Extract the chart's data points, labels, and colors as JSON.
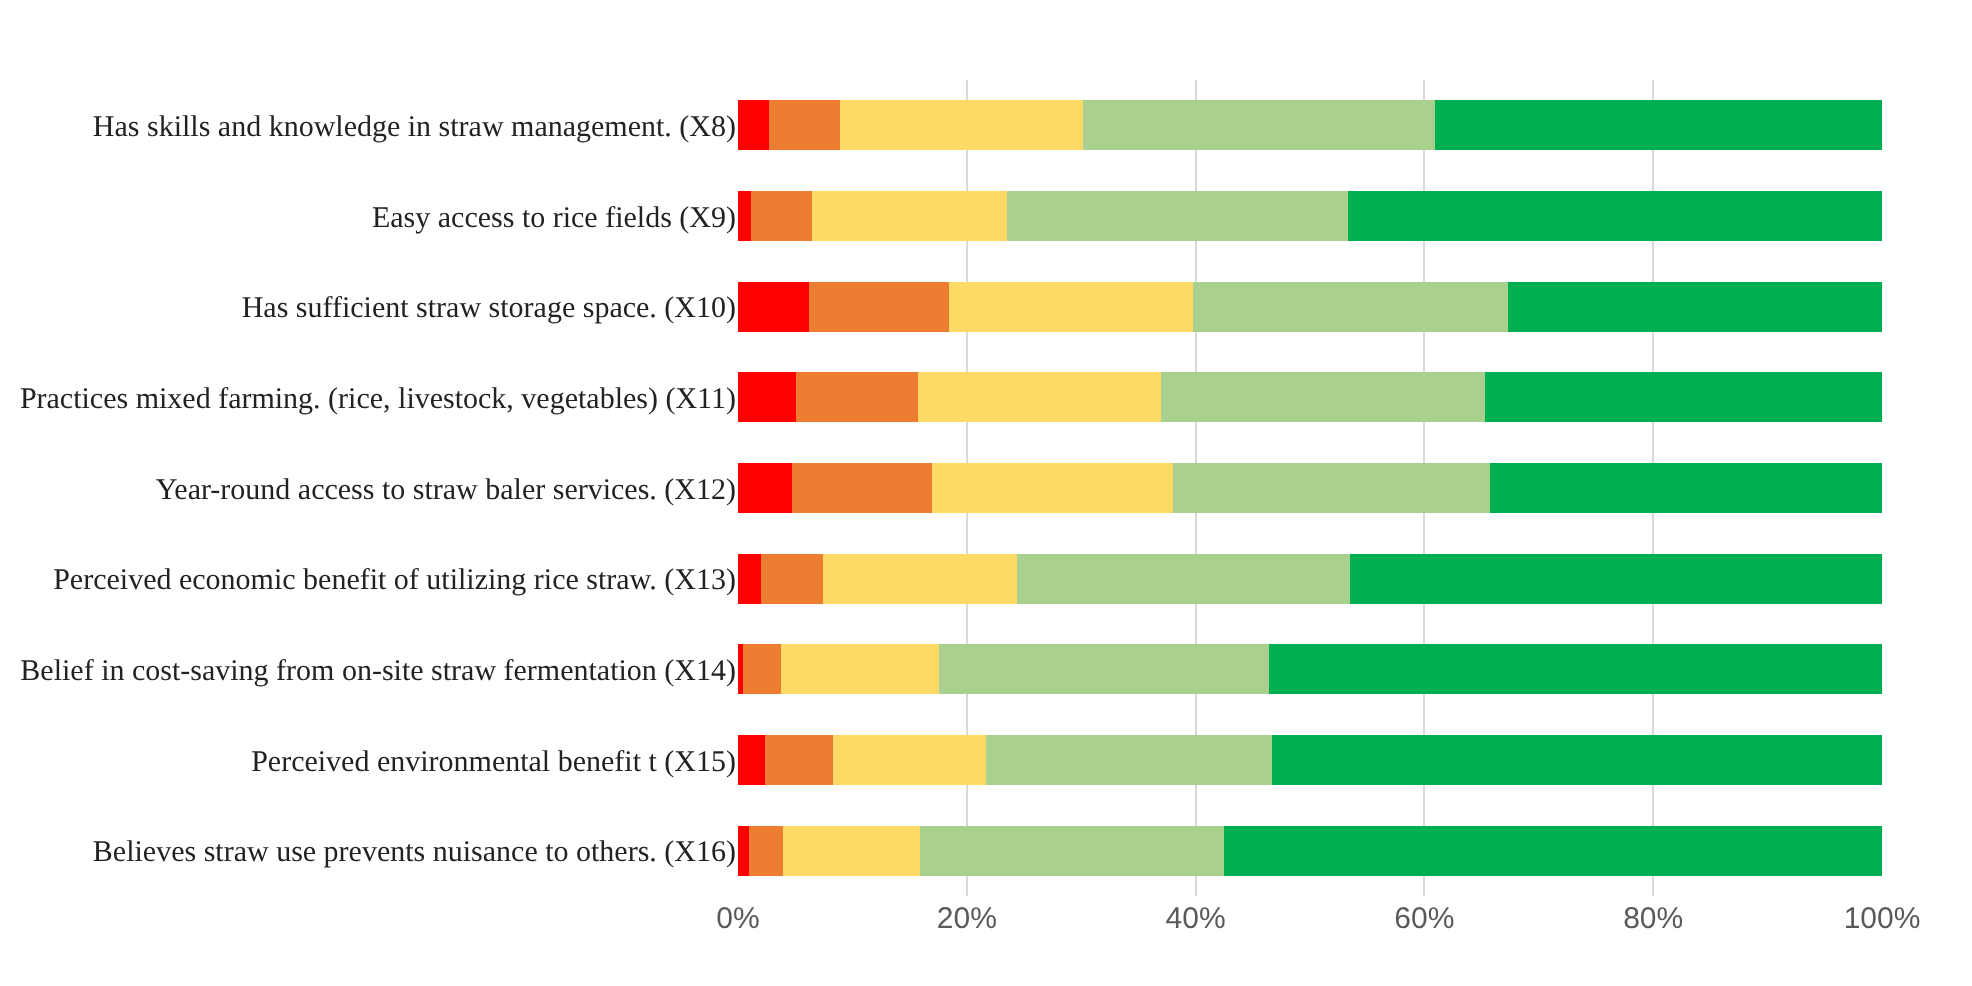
{
  "chart_data": {
    "type": "bar",
    "orientation": "horizontal",
    "stacked": true,
    "grid": "x",
    "categories": [
      "Has skills and knowledge in straw management. (X8)",
      "Easy access to rice fields (X9)",
      "Has sufficient straw storage space. (X10)",
      "Practices mixed farming. (rice, livestock, vegetables) (X11)",
      "Year-round access to straw baler services. (X12)",
      "Perceived economic benefit of utilizing rice straw. (X13)",
      "Belief in cost-saving from on-site straw fermentation (X14)",
      "Perceived environmental benefit t (X15)",
      "Believes straw use prevents nuisance to others. (X16)"
    ],
    "series": [
      {
        "color": "#ff0000",
        "values": [
          2.7,
          1.1,
          6.2,
          5.1,
          4.7,
          2.0,
          0.4,
          2.4,
          1.0
        ]
      },
      {
        "color": "#ed7d31",
        "values": [
          6.2,
          5.4,
          12.2,
          10.6,
          12.3,
          5.4,
          3.4,
          5.9,
          2.9
        ]
      },
      {
        "color": "#ffd966",
        "values": [
          21.3,
          17.0,
          21.4,
          21.3,
          21.0,
          17.0,
          13.8,
          13.4,
          12.0
        ]
      },
      {
        "color": "#a9d08e",
        "values": [
          30.7,
          29.8,
          27.5,
          28.3,
          27.7,
          29.1,
          28.8,
          25.0,
          26.6
        ]
      },
      {
        "color": "#00b050",
        "values": [
          39.1,
          46.7,
          32.7,
          34.7,
          34.3,
          46.5,
          53.6,
          53.3,
          57.5
        ]
      }
    ],
    "xlim": [
      0,
      100
    ],
    "xticks": [
      {
        "value": 0,
        "label": "0%"
      },
      {
        "value": 20,
        "label": "20%"
      },
      {
        "value": 40,
        "label": "40%"
      },
      {
        "value": 60,
        "label": "60%"
      },
      {
        "value": 80,
        "label": "80%"
      },
      {
        "value": 100,
        "label": "100%"
      }
    ]
  }
}
